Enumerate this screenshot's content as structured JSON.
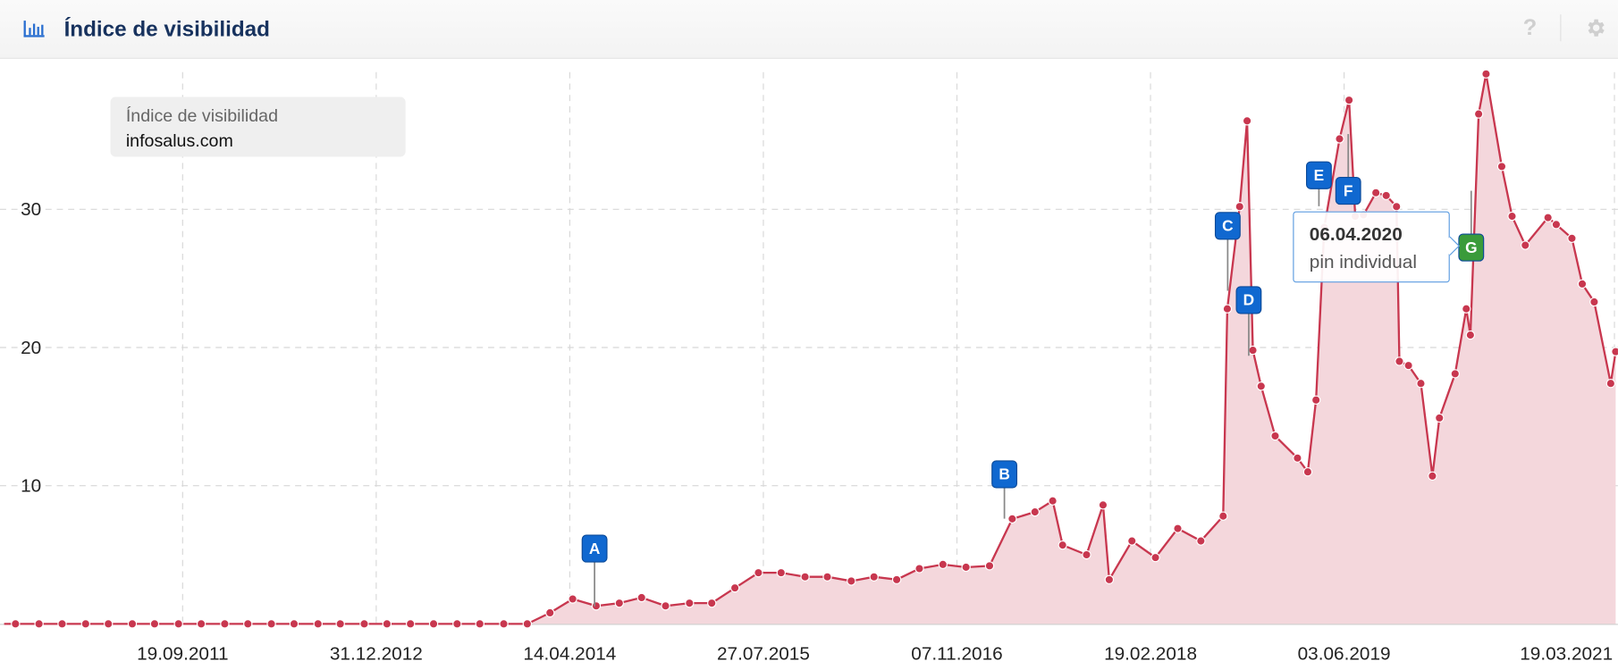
{
  "header": {
    "title": "Índice de visibilidad",
    "icon": "bar-chart-icon",
    "help_icon": "question-icon",
    "settings_icon": "gear-icon"
  },
  "legend": {
    "title": "Índice de visibilidad",
    "series": "infosalus.com"
  },
  "tooltip": {
    "date": "06.04.2020",
    "text": "pin individual"
  },
  "colors": {
    "line": "#c8374f",
    "fill": "#f4d7dc",
    "pin_blue": "#1068d0",
    "pin_green": "#3a9b3a",
    "grid": "#d8d8d8",
    "title": "#17325e"
  },
  "chart_data": {
    "type": "area",
    "title": "",
    "xlabel": "",
    "ylabel": "",
    "ylim": [
      0,
      40
    ],
    "yticks": [
      "10",
      "20",
      "30"
    ],
    "xticks": [
      [
        "2011-09-19",
        "19.09.2011"
      ],
      [
        "2012-12-31",
        "31.12.2012"
      ],
      [
        "2014-04-14",
        "14.04.2014"
      ],
      [
        "2015-07-27",
        "27.07.2015"
      ],
      [
        "2016-11-07",
        "07.11.2016"
      ],
      [
        "2018-02-19",
        "19.02.2018"
      ],
      [
        "2019-06-03",
        "03.06.2019"
      ],
      [
        "2021-03-19",
        "19.03.2021"
      ]
    ],
    "grid": true,
    "legend": "top-left",
    "series": [
      {
        "name": "infosalus.com",
        "points": [
          [
            "2010-08-10",
            0
          ],
          [
            "2010-10-06",
            0
          ],
          [
            "2010-12-01",
            0
          ],
          [
            "2011-01-27",
            0
          ],
          [
            "2011-03-23",
            0
          ],
          [
            "2011-05-20",
            0
          ],
          [
            "2011-07-13",
            0
          ],
          [
            "2011-09-09",
            0
          ],
          [
            "2011-11-03",
            0
          ],
          [
            "2011-12-30",
            0
          ],
          [
            "2012-02-24",
            0
          ],
          [
            "2012-04-21",
            0
          ],
          [
            "2012-06-15",
            0
          ],
          [
            "2012-08-12",
            0
          ],
          [
            "2012-10-05",
            0
          ],
          [
            "2012-12-02",
            0
          ],
          [
            "2013-01-26",
            0
          ],
          [
            "2013-03-24",
            0
          ],
          [
            "2013-05-19",
            0
          ],
          [
            "2013-07-15",
            0
          ],
          [
            "2013-09-08",
            0
          ],
          [
            "2013-11-05",
            0
          ],
          [
            "2014-01-01",
            0
          ],
          [
            "2014-02-25",
            0.8
          ],
          [
            "2014-04-21",
            1.8
          ],
          [
            "2014-06-17",
            1.3
          ],
          [
            "2014-08-12",
            1.5
          ],
          [
            "2014-10-05",
            1.9
          ],
          [
            "2014-12-02",
            1.3
          ],
          [
            "2015-01-29",
            1.5
          ],
          [
            "2015-03-24",
            1.5
          ],
          [
            "2015-05-19",
            2.6
          ],
          [
            "2015-07-15",
            3.7
          ],
          [
            "2015-09-08",
            3.7
          ],
          [
            "2015-11-05",
            3.4
          ],
          [
            "2015-12-29",
            3.4
          ],
          [
            "2016-02-25",
            3.1
          ],
          [
            "2016-04-20",
            3.4
          ],
          [
            "2016-06-14",
            3.2
          ],
          [
            "2016-08-08",
            4.0
          ],
          [
            "2016-10-04",
            4.3
          ],
          [
            "2016-11-29",
            4.1
          ],
          [
            "2017-01-25",
            4.2
          ],
          [
            "2017-03-21",
            7.6
          ],
          [
            "2017-05-15",
            8.1
          ],
          [
            "2017-06-27",
            8.9
          ],
          [
            "2017-07-21",
            5.7
          ],
          [
            "2017-09-17",
            5.0
          ],
          [
            "2017-10-27",
            8.6
          ],
          [
            "2017-11-11",
            3.2
          ],
          [
            "2018-01-05",
            6.0
          ],
          [
            "2018-03-03",
            4.8
          ],
          [
            "2018-04-26",
            6.9
          ],
          [
            "2018-06-21",
            6.0
          ],
          [
            "2018-08-14",
            7.8
          ],
          [
            "2018-08-24",
            22.8
          ],
          [
            "2018-09-23",
            30.2
          ],
          [
            "2018-10-11",
            36.4
          ],
          [
            "2018-10-25",
            19.8
          ],
          [
            "2018-11-14",
            17.2
          ],
          [
            "2018-12-18",
            13.6
          ],
          [
            "2019-02-10",
            12.0
          ],
          [
            "2019-03-07",
            11.0
          ],
          [
            "2019-03-27",
            16.2
          ],
          [
            "2019-04-16",
            28.7
          ],
          [
            "2019-05-23",
            35.1
          ],
          [
            "2019-06-15",
            37.9
          ],
          [
            "2019-06-30",
            29.5
          ],
          [
            "2019-07-20",
            29.6
          ],
          [
            "2019-08-19",
            31.2
          ],
          [
            "2019-09-13",
            31.0
          ],
          [
            "2019-10-08",
            30.2
          ],
          [
            "2019-10-15",
            19.0
          ],
          [
            "2019-11-06",
            18.7
          ],
          [
            "2019-12-06",
            17.4
          ],
          [
            "2020-01-03",
            10.7
          ],
          [
            "2020-01-20",
            14.9
          ],
          [
            "2020-02-27",
            18.1
          ],
          [
            "2020-03-25",
            22.8
          ],
          [
            "2020-04-04",
            20.9
          ],
          [
            "2020-04-24",
            36.9
          ],
          [
            "2020-05-12",
            39.8
          ],
          [
            "2020-06-19",
            33.1
          ],
          [
            "2020-07-14",
            29.5
          ],
          [
            "2020-08-15",
            27.4
          ],
          [
            "2020-10-09",
            29.4
          ],
          [
            "2020-10-29",
            28.9
          ],
          [
            "2020-12-06",
            27.9
          ],
          [
            "2020-12-31",
            24.6
          ],
          [
            "2021-01-29",
            23.3
          ],
          [
            "2021-03-10",
            17.4
          ],
          [
            "2021-03-22",
            19.7
          ]
        ]
      }
    ],
    "pins": [
      {
        "label": "A",
        "date": "2014-06-13",
        "color": "blue"
      },
      {
        "label": "B",
        "date": "2017-03-02",
        "color": "blue"
      },
      {
        "label": "C",
        "date": "2018-08-25",
        "color": "blue"
      },
      {
        "label": "D",
        "date": "2018-10-15",
        "color": "blue"
      },
      {
        "label": "E",
        "date": "2019-04-03",
        "color": "blue"
      },
      {
        "label": "F",
        "date": "2019-06-13",
        "color": "blue"
      },
      {
        "label": "G",
        "date": "2020-04-06",
        "color": "green"
      }
    ]
  }
}
